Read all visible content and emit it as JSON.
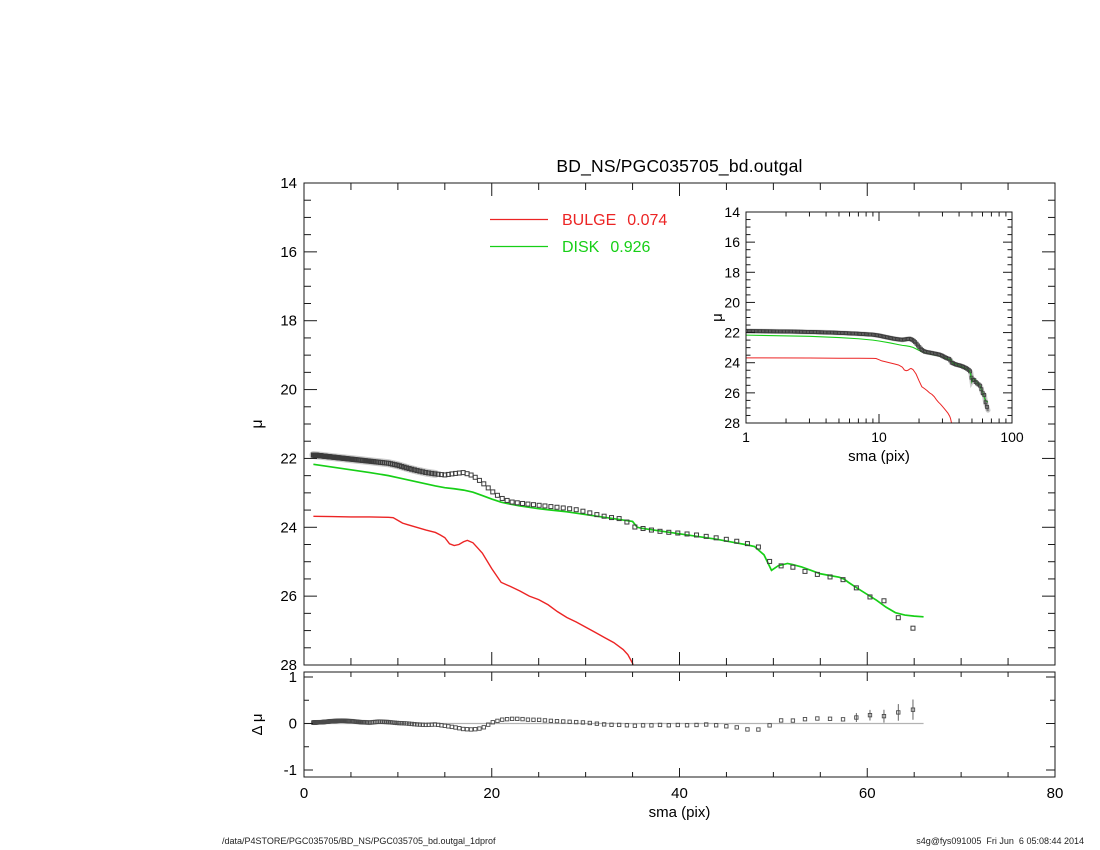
{
  "header": {
    "title": "BD_NS/PGC035705_bd.outgal"
  },
  "footer": {
    "left": "/data/P4STORE/PGC035705/BD_NS/PGC035705_bd.outgal_1dprof",
    "right": "s4g@fys091005  Fri Jun  6 05:08:44 2014"
  },
  "colors": {
    "background": "#ffffff",
    "bulge": "#ec2424",
    "disk": "#17cf17",
    "data_marker": "#3c3c3c",
    "fuzz_light": "#cccccc",
    "fuzz_mid": "#8f8f8f",
    "axis": "#1a1a1a",
    "zero_line": "#b3b3b3",
    "error_bar": "#555555"
  },
  "chart_data": {
    "type": "line",
    "title": "BD_NS/PGC035705_bd.outgal",
    "legend": [
      {
        "label": "BULGE",
        "value": "0.074"
      },
      {
        "label": "DISK",
        "value": "0.926"
      }
    ],
    "panels": {
      "main": {
        "ylabel": "μ",
        "xlim": [
          0,
          80
        ],
        "ylim": [
          28,
          14
        ],
        "xticks": [
          0,
          20,
          40,
          60,
          80
        ],
        "yticks": [
          14,
          16,
          18,
          20,
          22,
          24,
          26,
          28
        ],
        "x_tick_labels_visible": false,
        "x_minor_step": 5,
        "y_minor_step": 0.5,
        "legend_position": "top-center"
      },
      "inset": {
        "xlabel": "sma (pix)",
        "ylabel": "μ",
        "xscale": "log",
        "xlim": [
          1,
          100
        ],
        "ylim": [
          28,
          14
        ],
        "xticks": [
          1,
          10,
          100
        ],
        "yticks": [
          14,
          16,
          18,
          20,
          22,
          24,
          26,
          28
        ],
        "y_minor_step": 0.5
      },
      "residual": {
        "xlabel": "sma (pix)",
        "ylabel": "Δ μ",
        "xlim": [
          0,
          80
        ],
        "ylim": [
          -1,
          1
        ],
        "xticks": [
          0,
          20,
          40,
          60,
          80
        ],
        "yticks": [
          -1,
          0,
          1
        ],
        "x_minor_step": 5,
        "y_minor_step": 0.5,
        "zero_line_extent": [
          0,
          66
        ]
      }
    },
    "marker_spacing": {
      "start": 1,
      "growth_factor": 1.0247,
      "max": 66.3
    },
    "series": {
      "observed": {
        "name": "observed profile",
        "marker": "open-square",
        "points": [
          [
            1,
            21.9
          ],
          [
            2,
            21.93
          ],
          [
            3,
            21.96
          ],
          [
            4,
            21.99
          ],
          [
            5,
            22.02
          ],
          [
            6,
            22.05
          ],
          [
            7,
            22.08
          ],
          [
            8,
            22.11
          ],
          [
            9,
            22.14
          ],
          [
            10,
            22.2
          ],
          [
            11,
            22.28
          ],
          [
            12,
            22.35
          ],
          [
            13,
            22.41
          ],
          [
            14,
            22.45
          ],
          [
            15,
            22.48
          ],
          [
            16,
            22.44
          ],
          [
            17,
            22.41
          ],
          [
            18,
            22.5
          ],
          [
            19,
            22.7
          ],
          [
            20,
            22.95
          ],
          [
            21,
            23.15
          ],
          [
            22,
            23.26
          ],
          [
            23,
            23.3
          ],
          [
            24,
            23.33
          ],
          [
            25,
            23.36
          ],
          [
            26,
            23.39
          ],
          [
            27,
            23.42
          ],
          [
            28,
            23.45
          ],
          [
            29,
            23.49
          ],
          [
            30,
            23.55
          ],
          [
            31,
            23.62
          ],
          [
            32,
            23.68
          ],
          [
            33,
            23.73
          ],
          [
            34,
            23.76
          ],
          [
            35,
            23.98
          ],
          [
            36,
            24.03
          ],
          [
            37,
            24.08
          ],
          [
            38,
            24.12
          ],
          [
            39,
            24.15
          ],
          [
            40,
            24.17
          ],
          [
            41,
            24.2
          ],
          [
            42,
            24.23
          ],
          [
            43,
            24.27
          ],
          [
            44,
            24.31
          ],
          [
            45,
            24.35
          ],
          [
            46,
            24.4
          ],
          [
            47,
            24.46
          ],
          [
            48,
            24.52
          ],
          [
            49,
            24.65
          ],
          [
            50,
            25.22
          ],
          [
            51,
            25.1
          ],
          [
            52,
            25.15
          ],
          [
            53,
            25.27
          ],
          [
            54,
            25.3
          ],
          [
            55,
            25.4
          ],
          [
            56,
            25.44
          ],
          [
            57,
            25.5
          ],
          [
            58,
            25.55
          ],
          [
            59,
            25.8
          ],
          [
            60,
            26.0
          ],
          [
            61,
            26.08
          ],
          [
            62,
            26.15
          ],
          [
            63,
            26.55
          ],
          [
            64,
            26.8
          ],
          [
            65,
            26.95
          ],
          [
            66,
            27.15
          ]
        ]
      },
      "disk": {
        "name": "DISK",
        "style": "line",
        "points": [
          [
            1,
            22.17
          ],
          [
            3,
            22.25
          ],
          [
            5,
            22.33
          ],
          [
            7,
            22.41
          ],
          [
            9,
            22.5
          ],
          [
            10,
            22.56
          ],
          [
            12,
            22.68
          ],
          [
            14,
            22.8
          ],
          [
            15,
            22.85
          ],
          [
            16,
            22.88
          ],
          [
            17,
            22.92
          ],
          [
            18,
            22.98
          ],
          [
            19,
            23.08
          ],
          [
            20,
            23.18
          ],
          [
            21,
            23.27
          ],
          [
            22,
            23.33
          ],
          [
            23,
            23.38
          ],
          [
            24,
            23.42
          ],
          [
            25,
            23.46
          ],
          [
            26,
            23.49
          ],
          [
            27,
            23.52
          ],
          [
            28,
            23.55
          ],
          [
            29,
            23.59
          ],
          [
            30,
            23.63
          ],
          [
            31,
            23.67
          ],
          [
            32,
            23.71
          ],
          [
            33,
            23.75
          ],
          [
            34,
            23.79
          ],
          [
            35,
            23.83
          ],
          [
            35.5,
            24.0
          ],
          [
            36,
            24.03
          ],
          [
            37,
            24.07
          ],
          [
            38,
            24.11
          ],
          [
            39,
            24.15
          ],
          [
            40,
            24.19
          ],
          [
            41,
            24.23
          ],
          [
            42,
            24.27
          ],
          [
            43,
            24.31
          ],
          [
            44,
            24.35
          ],
          [
            45,
            24.4
          ],
          [
            46,
            24.45
          ],
          [
            47,
            24.5
          ],
          [
            48,
            24.56
          ],
          [
            49,
            24.8
          ],
          [
            49.8,
            25.25
          ],
          [
            50.5,
            25.12
          ],
          [
            51.5,
            25.05
          ],
          [
            52,
            25.08
          ],
          [
            53,
            25.15
          ],
          [
            54,
            25.25
          ],
          [
            55,
            25.35
          ],
          [
            56,
            25.4
          ],
          [
            57,
            25.45
          ],
          [
            57.5,
            25.5
          ],
          [
            58,
            25.6
          ],
          [
            59,
            25.78
          ],
          [
            60,
            25.95
          ],
          [
            61,
            26.12
          ],
          [
            62,
            26.32
          ],
          [
            63,
            26.48
          ],
          [
            64,
            26.55
          ],
          [
            65,
            26.58
          ],
          [
            66,
            26.6
          ]
        ]
      },
      "bulge": {
        "name": "BULGE",
        "style": "line",
        "points": [
          [
            1,
            23.68
          ],
          [
            3,
            23.69
          ],
          [
            5,
            23.7
          ],
          [
            7,
            23.7
          ],
          [
            9,
            23.71
          ],
          [
            9.5,
            23.72
          ],
          [
            10,
            23.8
          ],
          [
            10.5,
            23.88
          ],
          [
            11,
            23.92
          ],
          [
            12,
            24.0
          ],
          [
            13,
            24.08
          ],
          [
            14,
            24.15
          ],
          [
            14.5,
            24.22
          ],
          [
            15,
            24.3
          ],
          [
            15.5,
            24.48
          ],
          [
            16,
            24.53
          ],
          [
            16.5,
            24.5
          ],
          [
            17,
            24.42
          ],
          [
            17.4,
            24.38
          ],
          [
            18,
            24.45
          ],
          [
            18.5,
            24.6
          ],
          [
            19,
            24.75
          ],
          [
            20,
            25.2
          ],
          [
            21,
            25.6
          ],
          [
            22,
            25.72
          ],
          [
            23,
            25.85
          ],
          [
            24,
            26.0
          ],
          [
            25,
            26.1
          ],
          [
            26,
            26.25
          ],
          [
            27,
            26.45
          ],
          [
            28,
            26.62
          ],
          [
            29,
            26.75
          ],
          [
            30,
            26.9
          ],
          [
            31,
            27.05
          ],
          [
            32,
            27.2
          ],
          [
            33,
            27.35
          ],
          [
            34,
            27.55
          ],
          [
            34.5,
            27.7
          ],
          [
            35,
            27.95
          ],
          [
            35.3,
            28.25
          ]
        ]
      },
      "residual": {
        "name": "data minus model",
        "marker": "open-square",
        "points": [
          [
            1,
            0.02
          ],
          [
            2,
            0.03
          ],
          [
            3,
            0.05
          ],
          [
            4,
            0.06
          ],
          [
            5,
            0.05
          ],
          [
            6,
            0.03
          ],
          [
            7,
            0.02
          ],
          [
            8,
            0.04
          ],
          [
            9,
            0.03
          ],
          [
            10,
            0.01
          ],
          [
            11,
            0.0
          ],
          [
            12,
            -0.02
          ],
          [
            13,
            -0.03
          ],
          [
            14,
            -0.02
          ],
          [
            15,
            -0.05
          ],
          [
            16,
            -0.08
          ],
          [
            17,
            -0.12
          ],
          [
            18,
            -0.13
          ],
          [
            19,
            -0.1
          ],
          [
            20,
            0.02
          ],
          [
            21,
            0.08
          ],
          [
            22,
            0.1
          ],
          [
            23,
            0.1
          ],
          [
            24,
            0.08
          ],
          [
            25,
            0.08
          ],
          [
            26,
            0.06
          ],
          [
            27,
            0.05
          ],
          [
            28,
            0.04
          ],
          [
            29,
            0.03
          ],
          [
            30,
            0.02
          ],
          [
            31,
            0.0
          ],
          [
            32,
            -0.02
          ],
          [
            33,
            -0.03
          ],
          [
            34,
            -0.03
          ],
          [
            35,
            -0.05
          ],
          [
            36,
            -0.04
          ],
          [
            37,
            -0.04
          ],
          [
            38,
            -0.03
          ],
          [
            39,
            -0.04
          ],
          [
            40,
            -0.03
          ],
          [
            41,
            -0.04
          ],
          [
            42,
            -0.03
          ],
          [
            43,
            -0.02
          ],
          [
            44,
            -0.04
          ],
          [
            45,
            -0.06
          ],
          [
            46,
            -0.08
          ],
          [
            47,
            -0.12
          ],
          [
            48,
            -0.15
          ],
          [
            49,
            -0.1
          ],
          [
            50,
            0.0
          ],
          [
            51,
            0.08
          ],
          [
            52,
            0.06
          ],
          [
            53,
            0.1
          ],
          [
            54,
            0.08
          ],
          [
            55,
            0.12
          ],
          [
            56,
            0.1
          ],
          [
            57,
            0.14
          ],
          [
            58,
            0.02
          ],
          [
            59,
            0.15
          ],
          [
            60,
            0.22
          ],
          [
            61,
            0.08
          ],
          [
            62,
            0.18
          ],
          [
            63,
            0.22
          ],
          [
            64,
            0.28
          ],
          [
            65,
            0.3
          ],
          [
            66,
            0.5
          ]
        ]
      },
      "residual_errors": [
        [
          50,
          0.03
        ],
        [
          55,
          0.05
        ],
        [
          57,
          0.07
        ],
        [
          58,
          0.08
        ],
        [
          59,
          0.1
        ],
        [
          60,
          0.12
        ],
        [
          61,
          0.1
        ],
        [
          62,
          0.15
        ],
        [
          63,
          0.17
        ],
        [
          64,
          0.2
        ],
        [
          65,
          0.22
        ],
        [
          66,
          0.28
        ]
      ]
    }
  }
}
